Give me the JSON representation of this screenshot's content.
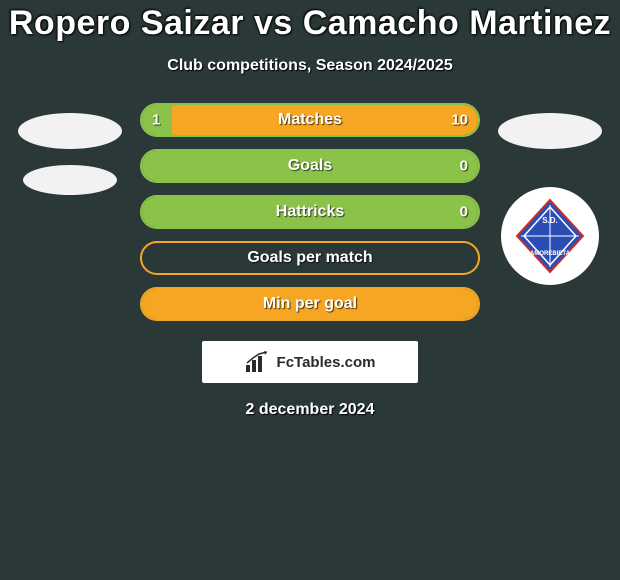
{
  "title": "Ropero Saizar vs Camacho Martinez",
  "subtitle": "Club competitions, Season 2024/2025",
  "watermark": "FcTables.com",
  "date": "2 december 2024",
  "colors": {
    "background": "#2a3838",
    "bar_border_green": "#8bc34a",
    "bar_fill_green": "#8bc34a",
    "bar_border_orange": "#f5a623",
    "bar_fill_orange": "#f5a623",
    "text": "#ffffff",
    "avatar": "#f2f2f2",
    "club_badge_bg": "#ffffff",
    "club_badge_main": "#2a4db5"
  },
  "bars": [
    {
      "label": "Matches",
      "left_value": "1",
      "right_value": "10",
      "left_pct": 9,
      "right_pct": 91,
      "border_color": "#8bc34a",
      "left_fill": "#8bc34a",
      "right_fill": "#f5a623"
    },
    {
      "label": "Goals",
      "left_value": "",
      "right_value": "0",
      "left_pct": 100,
      "right_pct": 0,
      "border_color": "#8bc34a",
      "left_fill": "#8bc34a",
      "right_fill": "#f5a623"
    },
    {
      "label": "Hattricks",
      "left_value": "",
      "right_value": "0",
      "left_pct": 100,
      "right_pct": 0,
      "border_color": "#8bc34a",
      "left_fill": "#8bc34a",
      "right_fill": "#f5a623"
    },
    {
      "label": "Goals per match",
      "left_value": "",
      "right_value": "",
      "left_pct": 0,
      "right_pct": 0,
      "border_color": "#f5a623",
      "left_fill": "#8bc34a",
      "right_fill": "#f5a623"
    },
    {
      "label": "Min per goal",
      "left_value": "",
      "right_value": "",
      "left_pct": 100,
      "right_pct": 0,
      "border_color": "#f5a623",
      "left_fill": "#f5a623",
      "right_fill": "#f5a623"
    }
  ]
}
